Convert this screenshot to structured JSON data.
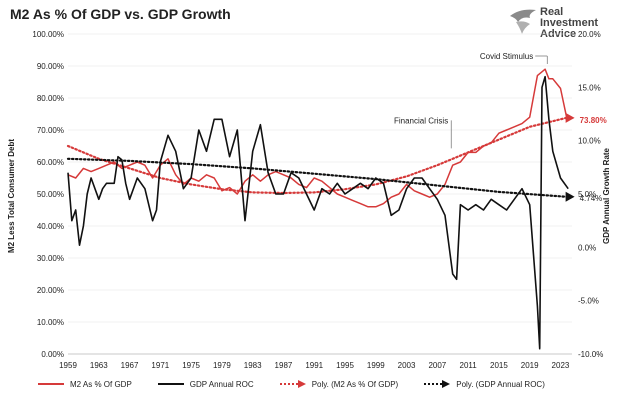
{
  "chart_data": {
    "type": "line",
    "title": "M2 As % Of GDP vs. GDP Growth",
    "ylabel_left": "M2 Less Total Consumer Debt",
    "ylabel_right": "GDP Annual Growth Rate",
    "x_ticks": [
      "1959",
      "1963",
      "1967",
      "1971",
      "1975",
      "1979",
      "1983",
      "1987",
      "1991",
      "1995",
      "1999",
      "2003",
      "2007",
      "2011",
      "2015",
      "2019",
      "2023"
    ],
    "x_range": [
      1959,
      2024.5
    ],
    "left_ticks": [
      "0.00%",
      "10.00%",
      "20.00%",
      "30.00%",
      "40.00%",
      "50.00%",
      "60.00%",
      "70.00%",
      "80.00%",
      "90.00%",
      "100.00%"
    ],
    "left_range": [
      0,
      100
    ],
    "right_ticks": [
      "-10.0%",
      "-5.0%",
      "0.0%",
      "5.0%",
      "10.0%",
      "15.0%",
      "20.0%"
    ],
    "right_range": [
      -10,
      20
    ],
    "annotations": [
      {
        "text": "Covid Stimulus",
        "x": 2020.5,
        "y": 90
      },
      {
        "text": "Financial Crisis",
        "x": 2008.8,
        "y": 73
      },
      {
        "text": "73.80%",
        "series": "Poly. (M2 As % Of GDP)"
      },
      {
        "text": "4.74%",
        "series": "Poly. (GDP Annual ROC)"
      }
    ],
    "series": [
      {
        "name": "M2 As % Of GDP",
        "axis": "left",
        "color": "#d63a3a",
        "x": [
          1959,
          1960,
          1961,
          1962,
          1963,
          1964,
          1965,
          1966,
          1967,
          1968,
          1969,
          1970,
          1971,
          1972,
          1973,
          1974,
          1975,
          1976,
          1977,
          1978,
          1979,
          1980,
          1981,
          1982,
          1983,
          1984,
          1985,
          1986,
          1987,
          1988,
          1989,
          1990,
          1991,
          1992,
          1993,
          1994,
          1995,
          1996,
          1997,
          1998,
          1999,
          2000,
          2001,
          2002,
          2003,
          2004,
          2005,
          2006,
          2007,
          2008,
          2009,
          2010,
          2011,
          2012,
          2013,
          2014,
          2015,
          2016,
          2017,
          2018,
          2019,
          2020,
          2020.5,
          2021,
          2021.5,
          2022,
          2023,
          2023.8
        ],
        "values": [
          56,
          55,
          58,
          57,
          58,
          59,
          60,
          58,
          59,
          60,
          59,
          55,
          59,
          61,
          56,
          53,
          55,
          54,
          56,
          55,
          51,
          52,
          50,
          54,
          56,
          54,
          56,
          57,
          56,
          55,
          53,
          52,
          55,
          54,
          52,
          50,
          49,
          48,
          47,
          46,
          46,
          47,
          49,
          50,
          53,
          51,
          50,
          49,
          50,
          53,
          59,
          60,
          63,
          63,
          65,
          66,
          69,
          70,
          71,
          72,
          74,
          87,
          88,
          89,
          86,
          86,
          83,
          74
        ]
      },
      {
        "name": "GDP Annual ROC",
        "axis": "right",
        "color": "#111111",
        "x": [
          1959,
          1959.5,
          1960,
          1960.5,
          1961,
          1961.5,
          1962,
          1963,
          1963.5,
          1964,
          1965,
          1965.5,
          1966,
          1966.5,
          1967,
          1968,
          1969,
          1970,
          1970.5,
          1971,
          1972,
          1973,
          1974,
          1975,
          1976,
          1977,
          1978,
          1979,
          1980,
          1981,
          1982,
          1983,
          1984,
          1985,
          1986,
          1987,
          1988,
          1989,
          1990,
          1991,
          1992,
          1993,
          1994,
          1995,
          1996,
          1997,
          1998,
          1999,
          2000,
          2001,
          2002,
          2003,
          2004,
          2005,
          2006,
          2007,
          2008,
          2009,
          2009.5,
          2010,
          2011,
          2012,
          2013,
          2014,
          2015,
          2016,
          2017,
          2018,
          2019,
          2020,
          2020.3,
          2020.6,
          2021,
          2021.5,
          2022,
          2023,
          2024
        ],
        "values": [
          7.0,
          2.5,
          3.5,
          0.2,
          2.0,
          5.0,
          6.5,
          4.5,
          5.5,
          6.0,
          6.0,
          8.5,
          8.2,
          6.0,
          4.5,
          6.5,
          5.5,
          2.5,
          3.5,
          8.0,
          10.5,
          9.0,
          5.5,
          6.5,
          11.0,
          9.0,
          12.0,
          12.0,
          8.5,
          11.0,
          2.5,
          9.0,
          11.5,
          7.0,
          5.0,
          5.0,
          7.0,
          6.5,
          5.0,
          3.5,
          5.5,
          5.0,
          6.0,
          5.0,
          5.5,
          6.0,
          5.5,
          6.5,
          6.0,
          3.0,
          3.5,
          5.5,
          6.5,
          6.5,
          5.5,
          4.5,
          3.0,
          -2.5,
          -3.0,
          4.0,
          3.5,
          4.0,
          3.5,
          4.5,
          4.0,
          3.5,
          4.5,
          5.5,
          4.0,
          -5.5,
          -9.5,
          15.0,
          16.0,
          12.0,
          9.0,
          6.5,
          5.5
        ]
      },
      {
        "name": "Poly. (M2 As % Of GDP)",
        "axis": "left",
        "color": "#d63a3a",
        "style": "dotted",
        "x": [
          1959,
          1963,
          1967,
          1971,
          1975,
          1979,
          1983,
          1987,
          1991,
          1995,
          1999,
          2003,
          2007,
          2011,
          2015,
          2019,
          2023.8
        ],
        "values": [
          65,
          61,
          58,
          55,
          53,
          51.5,
          50.5,
          50.3,
          50.5,
          51.5,
          53,
          55.5,
          59,
          63,
          67,
          71,
          73.8
        ]
      },
      {
        "name": "Poly. (GDP Annual ROC)",
        "axis": "right",
        "color": "#111111",
        "style": "dotted",
        "x": [
          1959,
          1967,
          1975,
          1983,
          1991,
          1999,
          2007,
          2015,
          2023.8
        ],
        "values": [
          8.3,
          8.1,
          7.8,
          7.4,
          6.9,
          6.4,
          5.8,
          5.2,
          4.74
        ]
      }
    ]
  }
}
